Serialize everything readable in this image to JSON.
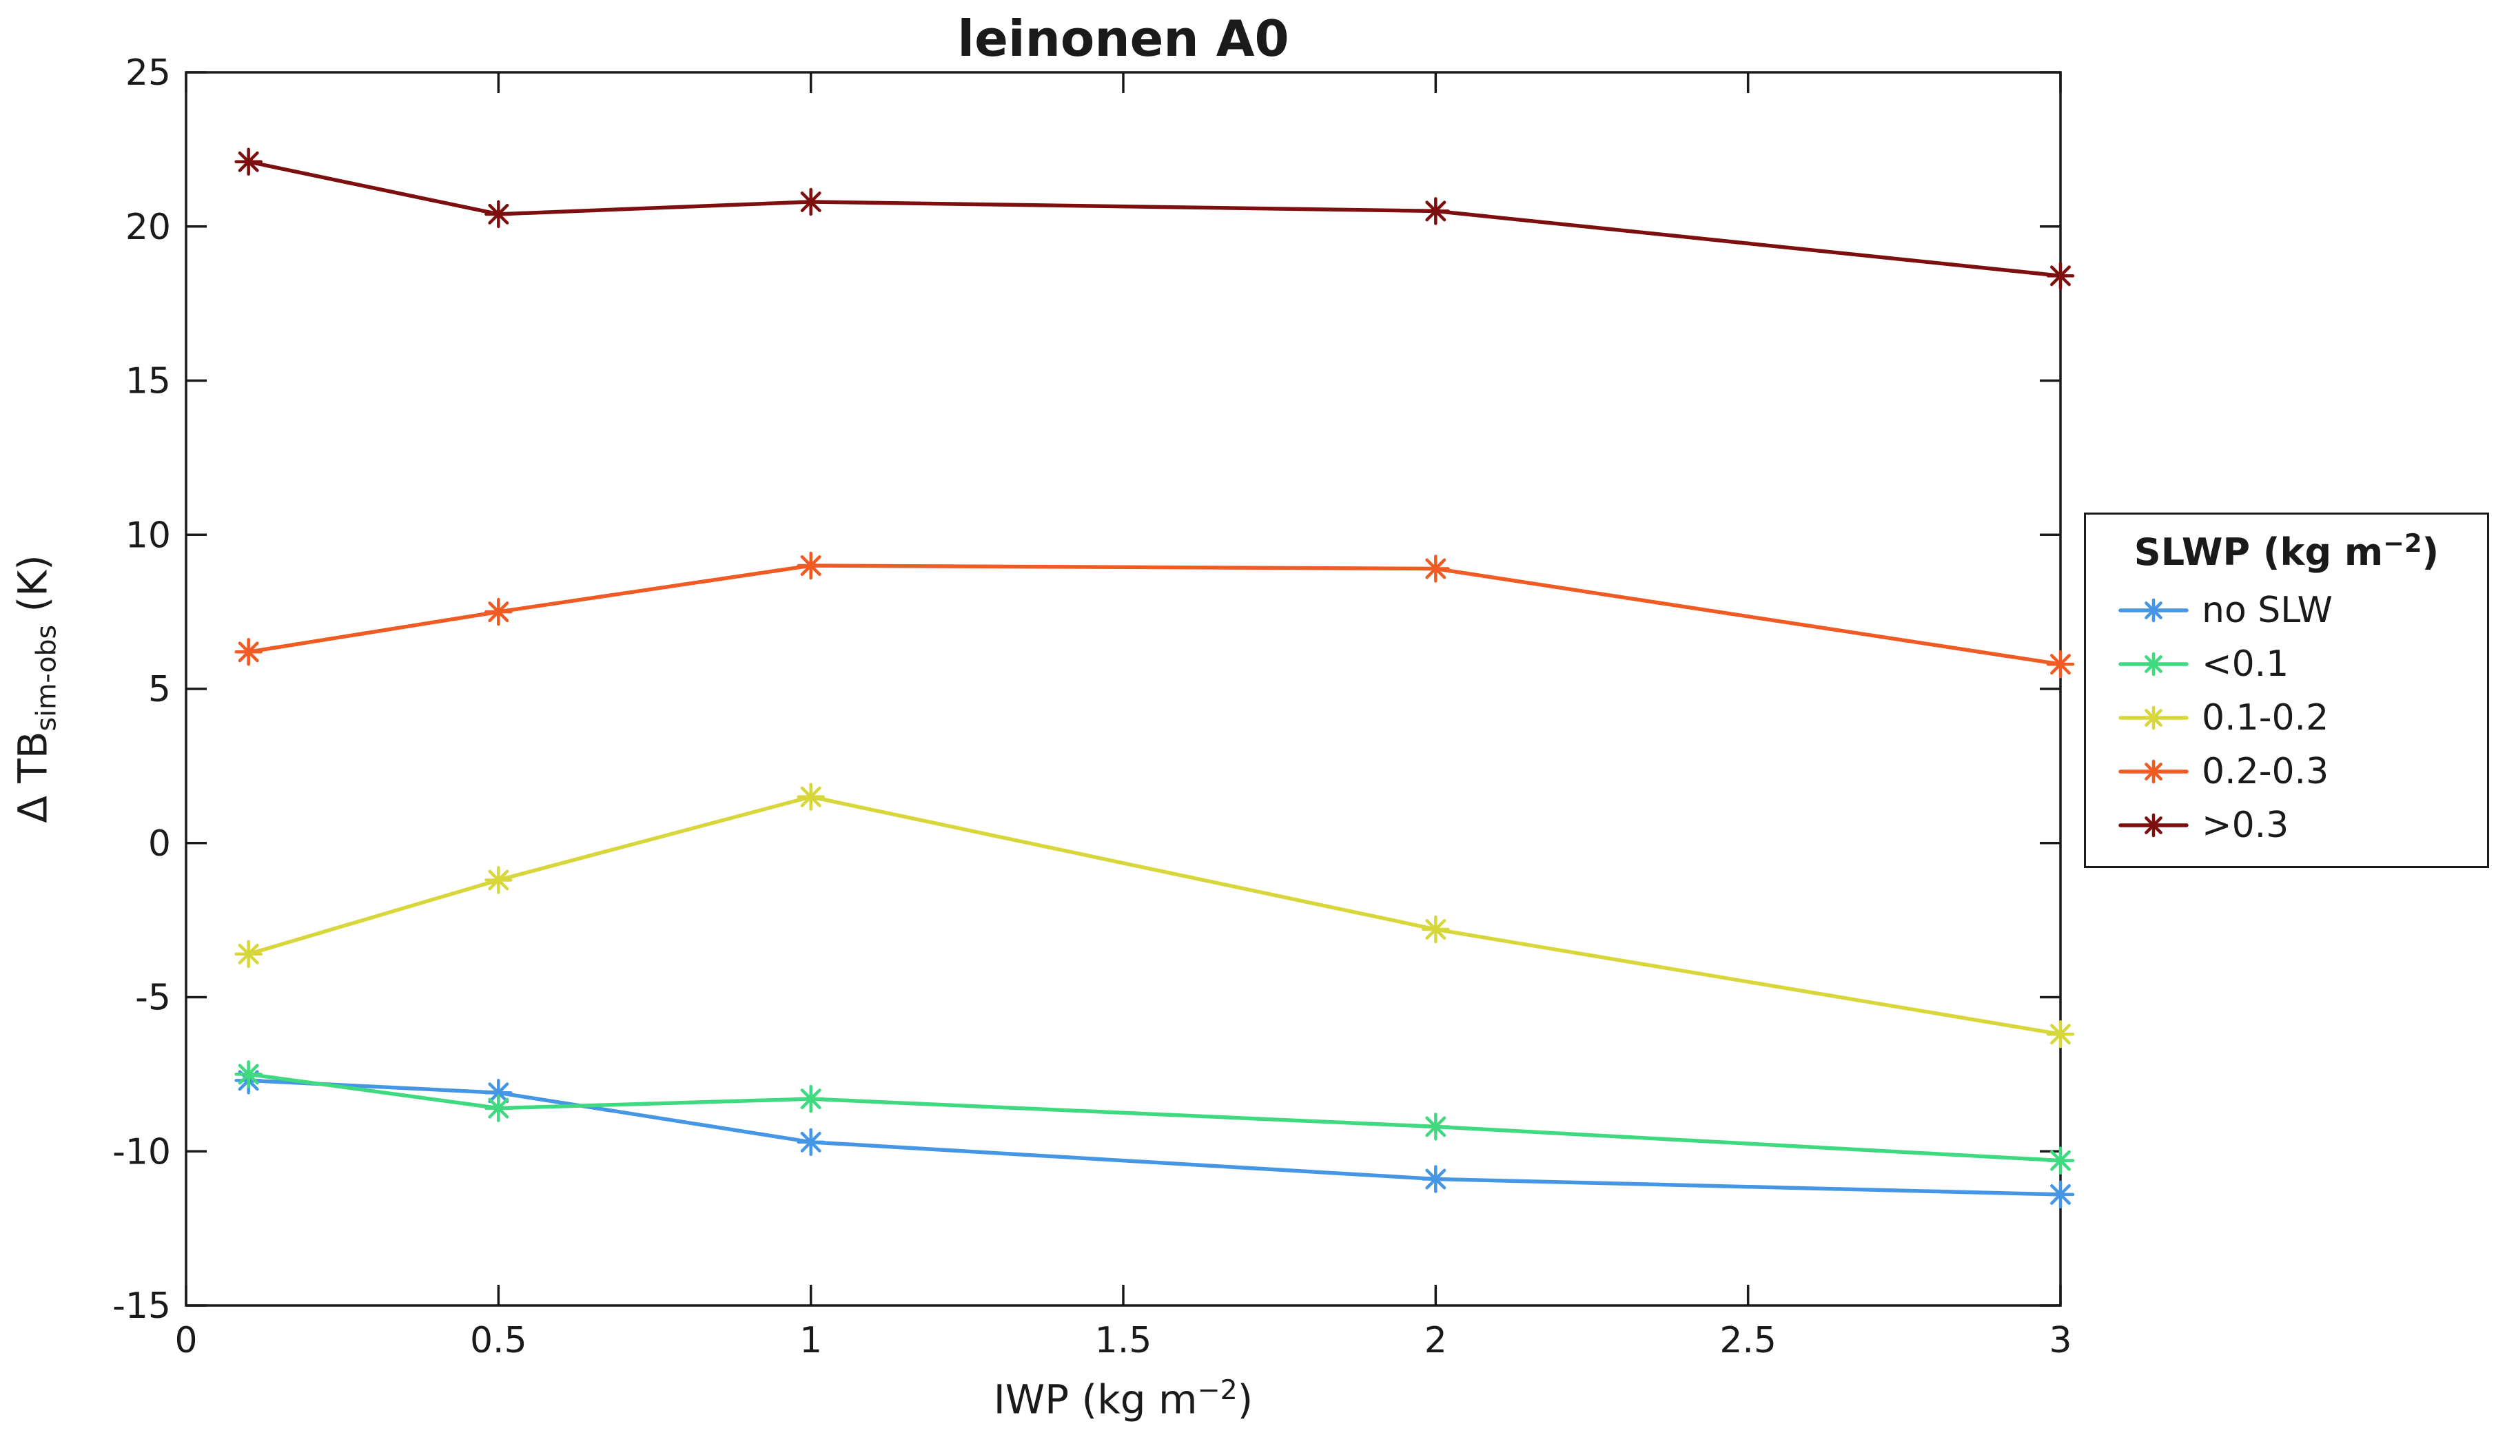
{
  "chart_data": {
    "type": "line",
    "title": "leinonen A0",
    "xlabel": {
      "prefix": "IWP (kg m",
      "sup": "−2",
      "suffix": ")"
    },
    "ylabel": {
      "prefix": "Δ TB",
      "sub": "sim-obs",
      "suffix": " (K)"
    },
    "xlim": [
      0,
      3
    ],
    "ylim": [
      -15,
      25
    ],
    "xticks": {
      "values": [
        0,
        0.5,
        1,
        1.5,
        2,
        2.5,
        3
      ],
      "labels": [
        "0",
        "0.5",
        "1",
        "1.5",
        "2",
        "2.5",
        "3"
      ]
    },
    "yticks": {
      "values": [
        -15,
        -10,
        -5,
        0,
        5,
        10,
        15,
        20,
        25
      ],
      "labels": [
        "-15",
        "-10",
        "-5",
        "0",
        "5",
        "10",
        "15",
        "20",
        "25"
      ]
    },
    "x": [
      0.1,
      0.5,
      1,
      2,
      3
    ],
    "series": [
      {
        "name": "no SLW",
        "color": "#4696E6",
        "marker": "asterisk",
        "values": [
          -7.7,
          -8.1,
          -9.7,
          -10.9,
          -11.4
        ]
      },
      {
        "name": "<0.1",
        "color": "#3FD97F",
        "marker": "asterisk",
        "values": [
          -7.5,
          -8.6,
          -8.3,
          -9.2,
          -10.3
        ]
      },
      {
        "name": "0.1-0.2",
        "color": "#D7D73C",
        "marker": "asterisk",
        "values": [
          -3.6,
          -1.2,
          1.5,
          -2.8,
          -6.2
        ]
      },
      {
        "name": "0.2-0.3",
        "color": "#F05A23",
        "marker": "asterisk",
        "values": [
          6.2,
          7.5,
          9.0,
          8.9,
          5.8
        ]
      },
      {
        "name": ">0.3",
        "color": "#7D0F0F",
        "marker": "asterisk",
        "values": [
          22.1,
          20.4,
          20.8,
          20.5,
          18.4
        ]
      }
    ],
    "legend": {
      "title": {
        "prefix": "SLWP (kg m",
        "sup": "−2",
        "suffix": ")"
      },
      "position": "outside-right"
    },
    "grid": false,
    "axis_color": "#1a1a1a",
    "background": "#ffffff"
  }
}
